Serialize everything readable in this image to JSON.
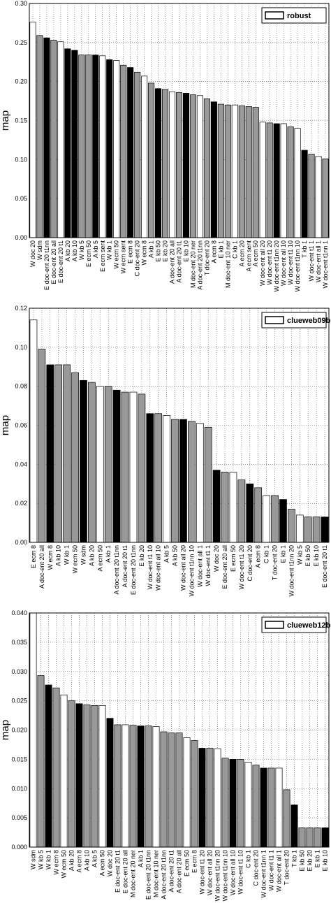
{
  "chart_data": [
    {
      "type": "bar",
      "ylabel": "map",
      "legend": "robust",
      "legend_corner": "top-right",
      "grid": true,
      "ylim": [
        0,
        0.3
      ],
      "yticks": [
        {
          "value": 0,
          "label": "0.00"
        },
        {
          "value": 0.05,
          "label": "0.05"
        },
        {
          "value": 0.1,
          "label": "0.10"
        },
        {
          "value": 0.15,
          "label": "0.15"
        },
        {
          "value": 0.2,
          "label": "0.20"
        },
        {
          "value": 0.25,
          "label": "0.25"
        },
        {
          "value": 0.3,
          "label": "0.30"
        }
      ],
      "categories": [
        "W doc 20",
        "W sdm",
        "E doc-ent 20 t1nn",
        "E doc-ent 20 all",
        "E doc-ent 20 t1",
        "A kb 20",
        "A kb 10",
        "W kb 5",
        "E ecm 50",
        "A kb 5",
        "E ecm sent",
        "W kb 1",
        "W ecm 50",
        "W ecm sent",
        "E ecm 8",
        "C doc-ent 20",
        "W ecm 8",
        "A kb 1",
        "E kb 50",
        "E kb 20",
        "A doc-ent 20 all",
        "A doc-ent 20 t1",
        "E kb 10",
        "M doc-ent 20 ner",
        "A doc-ent 20 t1nn",
        "T doc-ent 20",
        "A ecm 8",
        "E kb 1",
        "M doc-ent 10 ner",
        "C kb 1",
        "A ecm 20",
        "A ecm sent",
        "A ecm 50",
        "W doc-ent all 20",
        "W doc-ent t1 20",
        "W doc-ent t1nn 20",
        "W doc-ent all 10",
        "W doc-ent t1 10",
        "W doc-ent t1nn 10",
        "T kb 1",
        "W doc-ent t1 1",
        "W doc-ent all 1",
        "W doc-ent t1nn 1"
      ],
      "values": [
        0.276,
        0.259,
        0.256,
        0.253,
        0.251,
        0.242,
        0.24,
        0.234,
        0.234,
        0.234,
        0.233,
        0.228,
        0.227,
        0.221,
        0.218,
        0.212,
        0.207,
        0.198,
        0.191,
        0.19,
        0.187,
        0.186,
        0.185,
        0.183,
        0.182,
        0.178,
        0.174,
        0.171,
        0.17,
        0.17,
        0.169,
        0.168,
        0.167,
        0.148,
        0.147,
        0.146,
        0.146,
        0.142,
        0.14,
        0.112,
        0.107,
        0.104,
        0.101
      ],
      "colors": [
        "#ffffff",
        "#999999",
        "#000000",
        "#999999",
        "#ffffff",
        "#000000",
        "#000000",
        "#999999",
        "#999999",
        "#000000",
        "#ffffff",
        "#000000",
        "#ffffff",
        "#999999",
        "#000000",
        "#999999",
        "#ffffff",
        "#999999",
        "#000000",
        "#999999",
        "#ffffff",
        "#999999",
        "#000000",
        "#999999",
        "#ffffff",
        "#999999",
        "#000000",
        "#999999",
        "#999999",
        "#ffffff",
        "#999999",
        "#999999",
        "#999999",
        "#ffffff",
        "#999999",
        "#000000",
        "#ffffff",
        "#999999",
        "#ffffff",
        "#000000",
        "#999999",
        "#ffffff",
        "#999999"
      ]
    },
    {
      "type": "bar",
      "ylabel": "map",
      "legend": "clueweb09b",
      "legend_corner": "top-right",
      "grid": true,
      "ylim": [
        0,
        0.12
      ],
      "yticks": [
        {
          "value": 0,
          "label": "0.00"
        },
        {
          "value": 0.02,
          "label": "0.02"
        },
        {
          "value": 0.04,
          "label": "0.04"
        },
        {
          "value": 0.06,
          "label": "0.06"
        },
        {
          "value": 0.08,
          "label": "0.08"
        },
        {
          "value": 0.1,
          "label": "0.10"
        },
        {
          "value": 0.12,
          "label": "0.12"
        }
      ],
      "categories": [
        "E ecm 8",
        "A doc-ent 20 all",
        "W ecm 8",
        "A kb 10",
        "W kb 1",
        "W ecm 50",
        "W sdm",
        "A kb 20",
        "A ecm 50",
        "A kb 1",
        "A doc-ent 20 t1nn",
        "A doc-ent 20 t1",
        "E doc-ent 20 t1nn",
        "E kb 20",
        "W doc-ent t1 10",
        "W doc-ent all 10",
        "A kb 5",
        "A kb 50",
        "W doc-ent all 20",
        "W doc-ent t1nn 10",
        "W doc-ent all 1",
        "W doc-ent t1 1",
        "W doc 20",
        "E doc-ent 20 all",
        "E ecm 50",
        "W doc-ent t1 20",
        "C doc-ent 20",
        "A ecm 8",
        "C kb 1",
        "T doc-ent 20",
        "E kb 1",
        "W doc-ent t1nn 20",
        "W kb 5",
        "E kb 50",
        "E kb 10",
        "E doc-ent 20 t1"
      ],
      "values": [
        0.114,
        0.099,
        0.091,
        0.091,
        0.091,
        0.087,
        0.083,
        0.082,
        0.08,
        0.08,
        0.078,
        0.077,
        0.077,
        0.076,
        0.066,
        0.066,
        0.065,
        0.063,
        0.063,
        0.062,
        0.061,
        0.059,
        0.037,
        0.036,
        0.036,
        0.032,
        0.03,
        0.028,
        0.024,
        0.024,
        0.022,
        0.017,
        0.014,
        0.013,
        0.013,
        0.013
      ],
      "colors": [
        "#ffffff",
        "#999999",
        "#000000",
        "#999999",
        "#999999",
        "#999999",
        "#000000",
        "#999999",
        "#ffffff",
        "#999999",
        "#000000",
        "#999999",
        "#ffffff",
        "#999999",
        "#000000",
        "#999999",
        "#ffffff",
        "#999999",
        "#000000",
        "#999999",
        "#ffffff",
        "#999999",
        "#000000",
        "#999999",
        "#ffffff",
        "#999999",
        "#000000",
        "#999999",
        "#ffffff",
        "#999999",
        "#000000",
        "#999999",
        "#ffffff",
        "#999999",
        "#999999",
        "#000000"
      ]
    },
    {
      "type": "bar",
      "ylabel": "map",
      "legend": "clueweb12b",
      "legend_corner": "top-right",
      "grid": true,
      "ylim": [
        0,
        0.04
      ],
      "yticks": [
        {
          "value": 0,
          "label": "0.000"
        },
        {
          "value": 0.005,
          "label": "0.005"
        },
        {
          "value": 0.01,
          "label": "0.010"
        },
        {
          "value": 0.015,
          "label": "0.015"
        },
        {
          "value": 0.02,
          "label": "0.020"
        },
        {
          "value": 0.025,
          "label": "0.025"
        },
        {
          "value": 0.03,
          "label": "0.030"
        },
        {
          "value": 0.035,
          "label": "0.035"
        },
        {
          "value": 0.04,
          "label": "0.040"
        }
      ],
      "categories": [
        "W sdm",
        "W kb 5",
        "W kb 1",
        "W ecm 8",
        "W ecm 50",
        "A kb 20",
        "A ecm 8",
        "A kb 10",
        "A kb 5",
        "A ecm 50",
        "W doc 20",
        "E doc-ent 20 t1",
        "E doc-ent 20 all",
        "M doc-ent 20 ner",
        "A kb 1",
        "E doc-ent 20 t1nn",
        "M doc-ent 10 ner",
        "A doc-ent 20 t1nn",
        "A doc-ent 20 t1",
        "A doc-ent 20 all",
        "E ecm 50",
        "E ecm 8",
        "W doc-ent t1 20",
        "W doc-ent all 20",
        "W doc-ent t1nn 20",
        "W doc-ent t1nn 10",
        "W doc-ent all 10",
        "W doc-ent t1 10",
        "C kb 1",
        "C doc-ent 20",
        "W doc-ent t1nn 1",
        "W doc-ent t1 1",
        "W doc-ent all 1",
        "T doc-ent 20",
        "T kb 1",
        "E kb 50",
        "E kb 20",
        "E kb 1",
        "E kb 10"
      ],
      "values": [
        0.04,
        0.0293,
        0.0277,
        0.0272,
        0.026,
        0.025,
        0.0245,
        0.0243,
        0.0242,
        0.0242,
        0.022,
        0.0209,
        0.0209,
        0.0208,
        0.0207,
        0.0207,
        0.0206,
        0.0197,
        0.0195,
        0.0195,
        0.0187,
        0.0182,
        0.0169,
        0.0169,
        0.0168,
        0.0152,
        0.015,
        0.015,
        0.0145,
        0.014,
        0.0135,
        0.0135,
        0.0135,
        0.0098,
        0.0072,
        0.0033,
        0.0033,
        0.0033,
        0.0033
      ],
      "colors": [
        "#ffffff",
        "#999999",
        "#000000",
        "#999999",
        "#ffffff",
        "#999999",
        "#000000",
        "#999999",
        "#999999",
        "#ffffff",
        "#000000",
        "#999999",
        "#ffffff",
        "#999999",
        "#000000",
        "#999999",
        "#ffffff",
        "#999999",
        "#999999",
        "#999999",
        "#ffffff",
        "#999999",
        "#000000",
        "#999999",
        "#ffffff",
        "#999999",
        "#000000",
        "#999999",
        "#ffffff",
        "#999999",
        "#000000",
        "#999999",
        "#ffffff",
        "#999999",
        "#000000",
        "#999999",
        "#999999",
        "#999999",
        "#000000"
      ]
    }
  ]
}
